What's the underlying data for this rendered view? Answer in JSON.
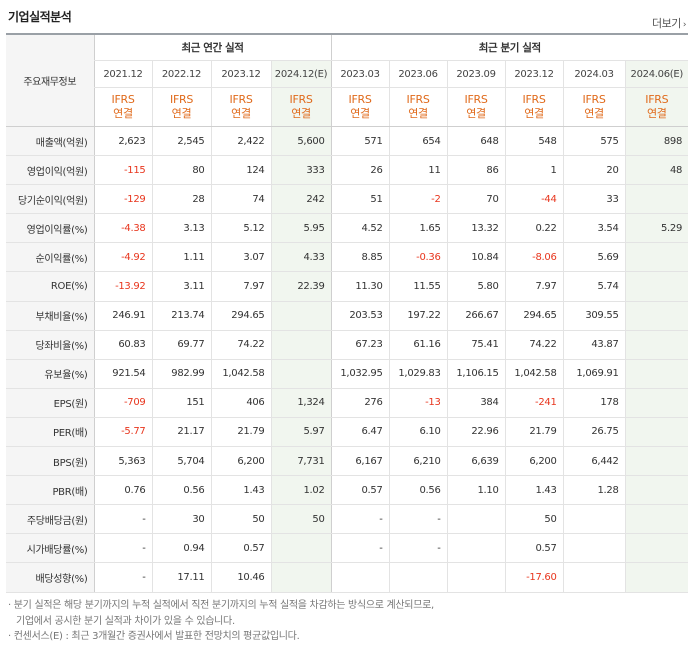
{
  "title": "기업실적분석",
  "more_label": "더보기",
  "header": {
    "row_label": "주요재무정보",
    "annual_group": "최근 연간 실적",
    "quarterly_group": "최근 분기 실적",
    "annual_periods": [
      "2021.12",
      "2022.12",
      "2023.12",
      "2024.12(E)"
    ],
    "quarterly_periods": [
      "2023.03",
      "2023.06",
      "2023.09",
      "2023.12",
      "2024.03",
      "2024.06(E)"
    ],
    "ifrs_top": "IFRS",
    "ifrs_bottom": "연결"
  },
  "rows": [
    {
      "label": "매출액(억원)",
      "values": [
        "2,623",
        "2,545",
        "2,422",
        "5,600",
        "571",
        "654",
        "648",
        "548",
        "575",
        "898"
      ]
    },
    {
      "label": "영업이익(억원)",
      "values": [
        "-115",
        "80",
        "124",
        "333",
        "26",
        "11",
        "86",
        "1",
        "20",
        "48"
      ]
    },
    {
      "label": "당기순이익(억원)",
      "values": [
        "-129",
        "28",
        "74",
        "242",
        "51",
        "-2",
        "70",
        "-44",
        "33",
        ""
      ]
    },
    {
      "label": "영업이익률(%)",
      "values": [
        "-4.38",
        "3.13",
        "5.12",
        "5.95",
        "4.52",
        "1.65",
        "13.32",
        "0.22",
        "3.54",
        "5.29"
      ]
    },
    {
      "label": "순이익률(%)",
      "values": [
        "-4.92",
        "1.11",
        "3.07",
        "4.33",
        "8.85",
        "-0.36",
        "10.84",
        "-8.06",
        "5.69",
        ""
      ]
    },
    {
      "label": "ROE(%)",
      "values": [
        "-13.92",
        "3.11",
        "7.97",
        "22.39",
        "11.30",
        "11.55",
        "5.80",
        "7.97",
        "5.74",
        ""
      ]
    },
    {
      "label": "부채비율(%)",
      "values": [
        "246.91",
        "213.74",
        "294.65",
        "",
        "203.53",
        "197.22",
        "266.67",
        "294.65",
        "309.55",
        ""
      ]
    },
    {
      "label": "당좌비율(%)",
      "values": [
        "60.83",
        "69.77",
        "74.22",
        "",
        "67.23",
        "61.16",
        "75.41",
        "74.22",
        "43.87",
        ""
      ]
    },
    {
      "label": "유보율(%)",
      "values": [
        "921.54",
        "982.99",
        "1,042.58",
        "",
        "1,032.95",
        "1,029.83",
        "1,106.15",
        "1,042.58",
        "1,069.91",
        ""
      ]
    },
    {
      "label": "EPS(원)",
      "values": [
        "-709",
        "151",
        "406",
        "1,324",
        "276",
        "-13",
        "384",
        "-241",
        "178",
        ""
      ]
    },
    {
      "label": "PER(배)",
      "values": [
        "-5.77",
        "21.17",
        "21.79",
        "5.97",
        "6.47",
        "6.10",
        "22.96",
        "21.79",
        "26.75",
        ""
      ]
    },
    {
      "label": "BPS(원)",
      "values": [
        "5,363",
        "5,704",
        "6,200",
        "7,731",
        "6,167",
        "6,210",
        "6,639",
        "6,200",
        "6,442",
        ""
      ]
    },
    {
      "label": "PBR(배)",
      "values": [
        "0.76",
        "0.56",
        "1.43",
        "1.02",
        "0.57",
        "0.56",
        "1.10",
        "1.43",
        "1.28",
        ""
      ]
    },
    {
      "label": "주당배당금(원)",
      "values": [
        "-",
        "30",
        "50",
        "50",
        "-",
        "-",
        "",
        "50",
        "",
        ""
      ]
    },
    {
      "label": "시가배당률(%)",
      "values": [
        "-",
        "0.94",
        "0.57",
        "",
        "-",
        "-",
        "",
        "0.57",
        "",
        ""
      ]
    },
    {
      "label": "배당성향(%)",
      "values": [
        "-",
        "17.11",
        "10.46",
        "",
        "",
        "",
        "",
        "-17.60",
        "",
        ""
      ]
    }
  ],
  "notes": [
    "분기 실적은 해당 분기까지의 누적 실적에서 직전 분기까지의 누적 실적을 차감하는 방식으로 계산되므로,",
    "기업에서 공시한 분기 실적과 차이가 있을 수 있습니다.",
    "컨센서스(E) : 최근 3개월간 증권사에서 발표한 전망치의 평균값입니다."
  ],
  "colors": {
    "negative": "#e8361e",
    "ifrs": "#e06a1b",
    "estimate_bg": "#f1f6ef"
  }
}
